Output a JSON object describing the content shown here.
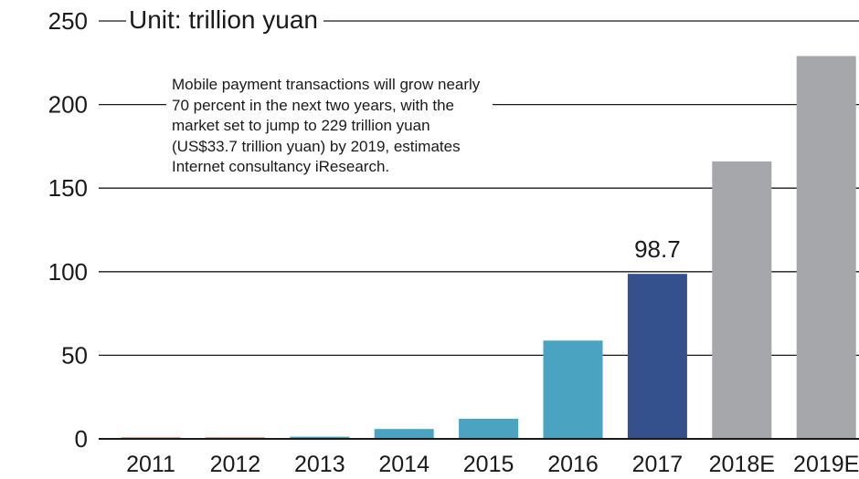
{
  "chart_data": {
    "type": "bar",
    "title": "",
    "unit_label": "Unit: trillion yuan",
    "categories": [
      "2011",
      "2012",
      "2013",
      "2014",
      "2015",
      "2016",
      "2017",
      "2018E",
      "2019E"
    ],
    "values": [
      0.1,
      0.1,
      1.3,
      5.9,
      12.0,
      58.8,
      98.7,
      166.0,
      229.0
    ],
    "bar_colors": [
      "#c0503a",
      "#c0503a",
      "#4aa3c0",
      "#4aa3c0",
      "#4aa3c0",
      "#4aa3c0",
      "#34518e",
      "#a6a7aa",
      "#a6a7aa"
    ],
    "data_labels": [
      {
        "category": "2017",
        "text": "98.7"
      }
    ],
    "yticks": [
      0,
      50,
      100,
      150,
      200,
      250
    ],
    "ylim": [
      0,
      250
    ],
    "xlabel": "",
    "ylabel": "",
    "grid": true,
    "annotation": "Mobile payment transactions will grow nearly 70 percent in the next two years, with the market set to jump to 229 trillion yuan (US$33.7 trillion yuan) by 2019, estimates Internet consultancy iResearch.",
    "colors": {
      "axis": "#1a1a1a",
      "grid": "#1a1a1a"
    }
  }
}
